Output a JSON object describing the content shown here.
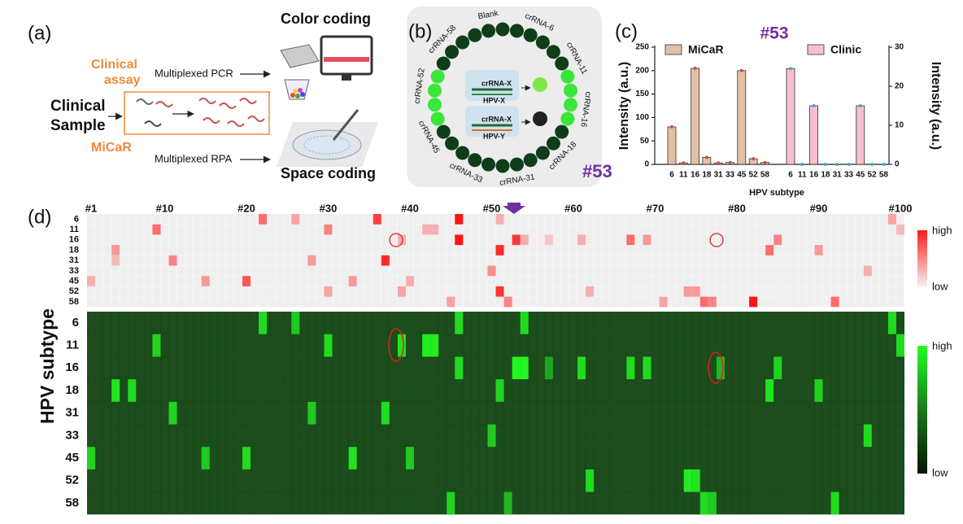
{
  "panel_a": {
    "label": "(a)",
    "clinical_assay": [
      "Clinical",
      "assay"
    ],
    "pcr": "Multiplexed PCR",
    "sample": [
      "Clinical",
      "Sample"
    ],
    "micar": "MiCaR",
    "rpa": "Multiplexed RPA",
    "color_coding": "Color coding",
    "space_coding": "Space coding"
  },
  "panel_b": {
    "label": "(b)",
    "segments": [
      "Blank",
      "crRNA-6",
      "crRNA-11",
      "crRNA-16",
      "crRNA-18",
      "crRNA-31",
      "crRNA-33",
      "crRNA-45",
      "crRNA-52",
      "crRNA-58"
    ],
    "probe_1": "crRNA-X",
    "target_1": "HPV-X",
    "probe_2": "crRNA-X",
    "target_2": "HPV-Y",
    "sample": "#53"
  },
  "chart_data": {
    "type": "bar",
    "panel_label": "(c)",
    "title": "#53",
    "categories": [
      "6",
      "11",
      "16",
      "18",
      "31",
      "33",
      "45",
      "52",
      "58"
    ],
    "xlabel": "HPV subtype",
    "ylabel": "Intensity (a.u.)",
    "y2label": "Intensity (a.u.)",
    "ylim": [
      0,
      250
    ],
    "yticks": [
      0,
      50,
      100,
      150,
      200,
      250
    ],
    "y2lim": [
      0,
      30
    ],
    "y2ticks": [
      0,
      10,
      20,
      30
    ],
    "series": [
      {
        "name": "MiCaR",
        "color": "#e3c0a3",
        "values": [
          80,
          3,
          205,
          15,
          3,
          4,
          200,
          12,
          4
        ]
      },
      {
        "name": "Clinic",
        "color": "#f6bfd2",
        "axis": "y2",
        "values": [
          24.5,
          0,
          15,
          0,
          0,
          0,
          15,
          0,
          0
        ]
      }
    ]
  },
  "panel_d": {
    "label": "(d)",
    "ylabel": "HPV subtype",
    "rows": [
      "6",
      "11",
      "16",
      "18",
      "31",
      "33",
      "45",
      "52",
      "58"
    ],
    "xlim": [
      1,
      100
    ],
    "xticks": [
      {
        "value": 1,
        "label": "#1"
      },
      {
        "value": 10,
        "label": "#10"
      },
      {
        "value": 20,
        "label": "#20"
      },
      {
        "value": 30,
        "label": "#30"
      },
      {
        "value": 40,
        "label": "#40"
      },
      {
        "value": 50,
        "label": "#50"
      },
      {
        "value": 60,
        "label": "#60"
      },
      {
        "value": 70,
        "label": "#70"
      },
      {
        "value": 80,
        "label": "#80"
      },
      {
        "value": 90,
        "label": "#90"
      },
      {
        "value": 100,
        "label": "#100"
      }
    ],
    "scale_high": "high",
    "scale_low": "low",
    "red_cells": [
      [
        22,
        0,
        0.6
      ],
      [
        26,
        0,
        0.35
      ],
      [
        36,
        0,
        0.8
      ],
      [
        46,
        0,
        1
      ],
      [
        51,
        0,
        0.3
      ],
      [
        99,
        0,
        0.35
      ],
      [
        9,
        1,
        0.6
      ],
      [
        30,
        1,
        0.5
      ],
      [
        42,
        1,
        0.3
      ],
      [
        43,
        1,
        0.3
      ],
      [
        100,
        1,
        0.25
      ],
      [
        39,
        2,
        0.3
      ],
      [
        46,
        2,
        1
      ],
      [
        53,
        2,
        0.85
      ],
      [
        54,
        2,
        0.3
      ],
      [
        57,
        2,
        0.2
      ],
      [
        61,
        2,
        0.3
      ],
      [
        67,
        2,
        0.6
      ],
      [
        69,
        2,
        0.4
      ],
      [
        85,
        2,
        0.5
      ],
      [
        4,
        3,
        0.4
      ],
      [
        51,
        3,
        0.9
      ],
      [
        84,
        3,
        0.6
      ],
      [
        90,
        3,
        0.4
      ],
      [
        4,
        4,
        0.25
      ],
      [
        11,
        4,
        0.5
      ],
      [
        28,
        4,
        0.4
      ],
      [
        37,
        4,
        0.9
      ],
      [
        50,
        5,
        0.45
      ],
      [
        96,
        5,
        0.3
      ],
      [
        1,
        6,
        0.3
      ],
      [
        15,
        6,
        0.4
      ],
      [
        20,
        6,
        0.7
      ],
      [
        33,
        6,
        0.4
      ],
      [
        40,
        6,
        0.3
      ],
      [
        30,
        7,
        0.35
      ],
      [
        39,
        7,
        0.35
      ],
      [
        51,
        7,
        0.85
      ],
      [
        62,
        7,
        0.3
      ],
      [
        74,
        7,
        0.4
      ],
      [
        75,
        7,
        0.4
      ],
      [
        45,
        8,
        0.35
      ],
      [
        52,
        8,
        0.5
      ],
      [
        71,
        8,
        0.35
      ],
      [
        76,
        8,
        0.6
      ],
      [
        77,
        8,
        0.5
      ],
      [
        82,
        8,
        1
      ],
      [
        92,
        8,
        0.6
      ]
    ],
    "green_cells": [
      [
        22,
        0,
        0.8
      ],
      [
        26,
        0,
        0.7
      ],
      [
        46,
        0,
        0.8
      ],
      [
        54,
        0,
        0.8
      ],
      [
        99,
        0,
        0.8
      ],
      [
        9,
        1,
        0.75
      ],
      [
        30,
        1,
        0.8
      ],
      [
        39,
        1,
        0.85
      ],
      [
        42,
        1,
        0.9
      ],
      [
        43,
        1,
        0.9
      ],
      [
        100,
        1,
        0.8
      ],
      [
        46,
        2,
        0.8
      ],
      [
        53,
        2,
        0.95
      ],
      [
        54,
        2,
        0.95
      ],
      [
        57,
        2,
        0.5
      ],
      [
        61,
        2,
        0.8
      ],
      [
        67,
        2,
        0.8
      ],
      [
        69,
        2,
        0.8
      ],
      [
        78,
        2,
        0.6
      ],
      [
        85,
        2,
        0.75
      ],
      [
        4,
        3,
        0.85
      ],
      [
        6,
        3,
        0.8
      ],
      [
        51,
        3,
        0.75
      ],
      [
        84,
        3,
        0.85
      ],
      [
        90,
        3,
        0.75
      ],
      [
        11,
        4,
        0.75
      ],
      [
        28,
        4,
        0.7
      ],
      [
        37,
        4,
        0.8
      ],
      [
        50,
        5,
        0.7
      ],
      [
        96,
        5,
        0.8
      ],
      [
        1,
        6,
        0.75
      ],
      [
        15,
        6,
        0.7
      ],
      [
        20,
        6,
        0.8
      ],
      [
        33,
        6,
        0.85
      ],
      [
        40,
        6,
        0.7
      ],
      [
        62,
        7,
        0.8
      ],
      [
        74,
        7,
        0.9
      ],
      [
        75,
        7,
        0.85
      ],
      [
        45,
        8,
        0.75
      ],
      [
        52,
        8,
        0.6
      ],
      [
        76,
        8,
        0.8
      ],
      [
        77,
        8,
        0.7
      ],
      [
        92,
        8,
        0.8
      ]
    ]
  }
}
